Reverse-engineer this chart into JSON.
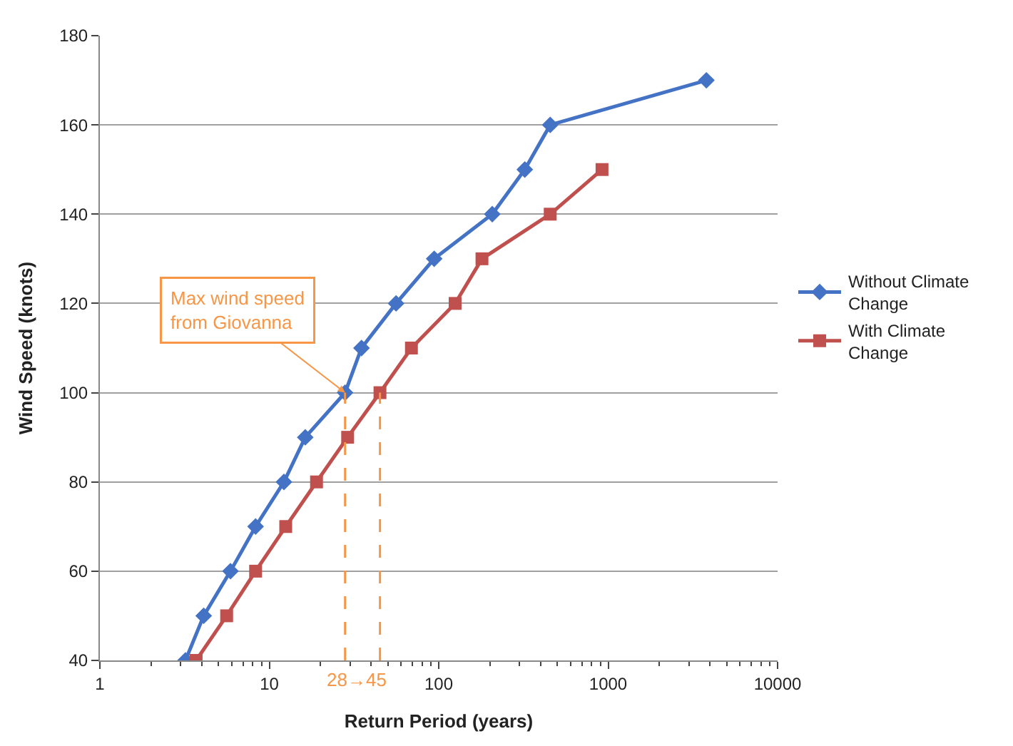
{
  "chart_data": {
    "type": "line",
    "xlabel": "Return Period (years)",
    "ylabel": "Wind Speed (knots)",
    "log": "x",
    "xlim": [
      1,
      10000
    ],
    "xticks": [
      1,
      10,
      100,
      1000,
      10000
    ],
    "ylim": [
      40,
      180
    ],
    "yticks": [
      40,
      60,
      80,
      100,
      120,
      140,
      160,
      180
    ],
    "grid": "y",
    "legend": "right",
    "series": [
      {
        "name": "Without Climate Change",
        "color": "#4472c4",
        "marker": "diamond",
        "x": [
          3.2,
          4.1,
          5.9,
          8.3,
          12.2,
          16.3,
          28,
          35,
          56,
          94,
          207,
          322,
          455,
          3800
        ],
        "values": [
          40,
          50,
          60,
          70,
          80,
          90,
          100,
          110,
          120,
          130,
          140,
          150,
          160,
          170
        ]
      },
      {
        "name": "With Climate Change",
        "color": "#c0504d",
        "marker": "square",
        "x": [
          3.7,
          5.6,
          8.3,
          12.5,
          19,
          29,
          45,
          69,
          125,
          180,
          455,
          920
        ],
        "values": [
          40,
          50,
          60,
          70,
          80,
          90,
          100,
          110,
          120,
          130,
          140,
          150
        ]
      },
      {
        "color": "#f79646",
        "marker": "none",
        "line_style": "dashed",
        "x": [
          28,
          28
        ],
        "values": [
          40,
          100
        ]
      },
      {
        "color": "#f79646",
        "marker": "none",
        "line_style": "dashed",
        "x": [
          45,
          45
        ],
        "values": [
          40,
          100
        ]
      }
    ],
    "annotations": [
      {
        "text": "Max wind speed\nfrom Giovanna",
        "x": 28,
        "y": 100
      },
      "28→45"
    ]
  }
}
